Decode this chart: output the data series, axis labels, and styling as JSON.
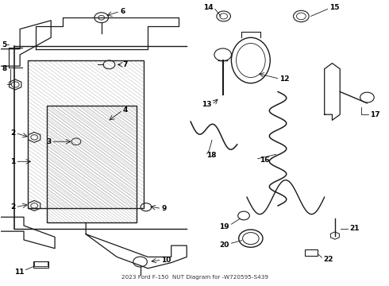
{
  "title": "2023 Ford F-150",
  "subtitle": "NUT Diagram for -W720595-S439",
  "bg_color": "#ffffff",
  "line_color": "#1a1a1a",
  "label_color": "#000000",
  "fig_width": 4.9,
  "fig_height": 3.6,
  "dpi": 100
}
